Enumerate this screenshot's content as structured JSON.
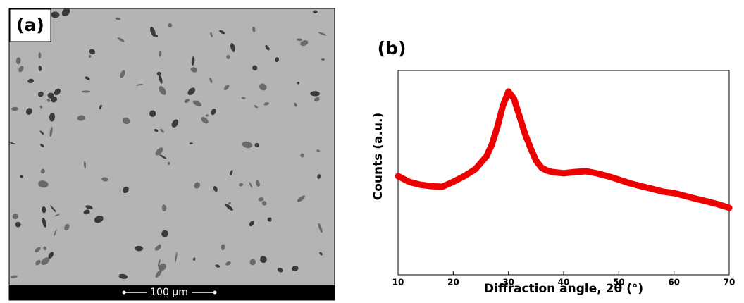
{
  "panel_a": {
    "label": "(a)",
    "scale_bar": "100 µm"
  },
  "chart_data": {
    "type": "line",
    "title": "(b)",
    "x_label": "Diffraction angle, 2θ (°)",
    "y_label": "Counts (a.u.)",
    "x": [
      10,
      12,
      14,
      16,
      18,
      20,
      22,
      24,
      26,
      27,
      28,
      29,
      30,
      31,
      32,
      33,
      34,
      35,
      36,
      37,
      38,
      40,
      42,
      44,
      46,
      48,
      50,
      52,
      54,
      56,
      58,
      60,
      62,
      64,
      66,
      68,
      70
    ],
    "series": [
      {
        "color": "#ee0000",
        "values": [
          48.3,
          45.5,
          44.1,
          43.4,
          43.1,
          45.5,
          48.3,
          51.7,
          57.9,
          63.8,
          72.4,
          82.8,
          89.7,
          86.2,
          77.6,
          69.0,
          62.1,
          55.9,
          52.4,
          51.0,
          50.3,
          49.7,
          50.3,
          50.7,
          49.7,
          48.3,
          46.6,
          44.8,
          43.4,
          42.1,
          40.7,
          40.0,
          38.6,
          37.2,
          35.9,
          34.5,
          32.8
        ]
      }
    ],
    "xlim": [
      10,
      70
    ],
    "ylim": [
      0,
      100
    ],
    "xticks": [
      10,
      20,
      30,
      40,
      50,
      60,
      70
    ]
  }
}
